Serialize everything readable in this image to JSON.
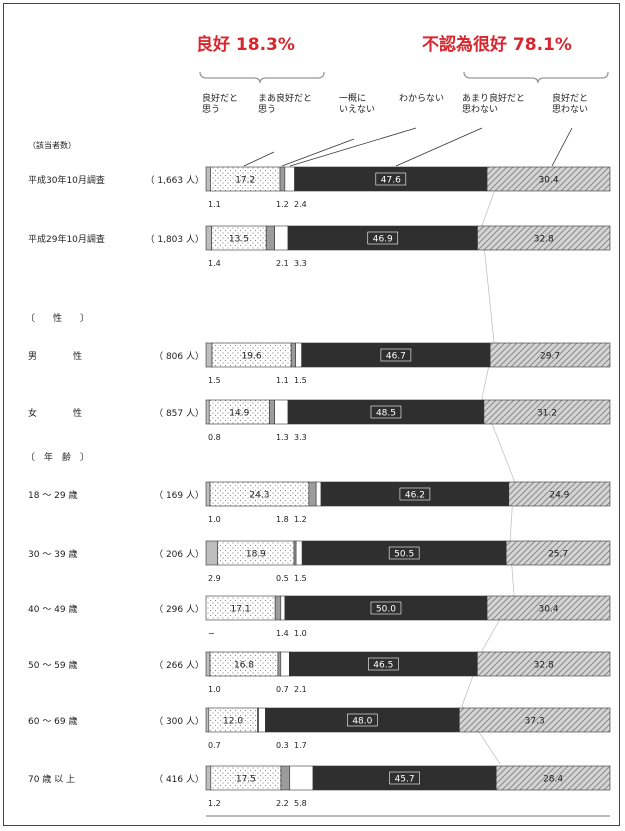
{
  "annotations": {
    "good": "良好 18.3%",
    "not_good": "不認為很好 78.1%"
  },
  "legend": [
    "良好だと\n思う",
    "まあ良好だと\n思う",
    "一概に\nいえない",
    "わからない",
    "あまり良好だと\n思わない",
    "良好だと\n思わない"
  ],
  "count_header": "（該当者数）",
  "groups": {
    "sex": "〔　　性　　〕",
    "age": "〔　年　齢　〕"
  },
  "chart_data": {
    "type": "bar",
    "orientation": "horizontal-stacked-100",
    "categories": [
      "良好だと思う",
      "まあ良好だと思う",
      "一概にいえない",
      "わからない",
      "あまり良好だと思わない",
      "良好だと思わない"
    ],
    "colors": [
      "#f4f4f4",
      "#e6e6e6",
      "#9a9a9a",
      "#ffffff",
      "#2e2e2e",
      "#c9c9c9"
    ],
    "rows": [
      {
        "label": "平成30年10月調査",
        "n": "（ 1,663 人）",
        "values": [
          1.1,
          17.2,
          1.2,
          2.4,
          47.6,
          30.4
        ],
        "shown_inside": [
          1,
          4,
          5
        ],
        "shown_below": [
          "1.1",
          "1.2",
          "2.4"
        ]
      },
      {
        "label": "平成29年10月調査",
        "n": "（ 1,803 人）",
        "values": [
          1.4,
          13.5,
          2.1,
          3.3,
          46.9,
          32.8
        ],
        "shown_inside": [
          1,
          4,
          5
        ],
        "shown_below": [
          "1.4",
          "2.1",
          "3.3"
        ]
      },
      {
        "label": "男　　　　性",
        "n": "（ 806 人）",
        "values": [
          1.5,
          19.6,
          1.1,
          1.5,
          46.7,
          29.7
        ],
        "shown_inside": [
          1,
          4,
          5
        ],
        "shown_below": [
          "1.5",
          "1.1",
          "1.5"
        ]
      },
      {
        "label": "女　　　　性",
        "n": "（ 857 人）",
        "values": [
          0.8,
          14.9,
          1.3,
          3.3,
          48.5,
          31.2
        ],
        "shown_inside": [
          1,
          4,
          5
        ],
        "shown_below": [
          "0.8",
          "1.3",
          "3.3"
        ]
      },
      {
        "label": "18 〜 29 歳",
        "n": "（ 169 人）",
        "values": [
          1.0,
          24.3,
          1.8,
          1.2,
          46.2,
          24.9
        ],
        "shown_inside": [
          1,
          4,
          5
        ],
        "shown_below": [
          "1.0",
          "1.8",
          "1.2"
        ]
      },
      {
        "label": "30 〜 39 歳",
        "n": "（ 206 人）",
        "values": [
          2.9,
          18.9,
          0.5,
          1.5,
          50.5,
          25.7
        ],
        "shown_inside": [
          1,
          4,
          5
        ],
        "shown_below": [
          "2.9",
          "0.5",
          "1.5"
        ]
      },
      {
        "label": "40 〜 49 歳",
        "n": "（ 296 人）",
        "values": [
          0,
          17.1,
          1.4,
          1.0,
          50.0,
          30.4
        ],
        "shown_inside": [
          1,
          4,
          5
        ],
        "shown_below": [
          "−",
          "1.4",
          "1.0"
        ]
      },
      {
        "label": "50 〜 59 歳",
        "n": "（ 266 人）",
        "values": [
          1.0,
          16.8,
          0.7,
          2.1,
          46.5,
          32.8
        ],
        "shown_inside": [
          1,
          4,
          5
        ],
        "shown_below": [
          "1.0",
          "0.7",
          "2.1"
        ]
      },
      {
        "label": "60 〜 69 歳",
        "n": "（ 300 人）",
        "values": [
          0.7,
          12.0,
          0.3,
          1.7,
          48.0,
          37.3
        ],
        "shown_inside": [
          1,
          4,
          5
        ],
        "shown_below": [
          "0.7",
          "0.3",
          "1.7"
        ]
      },
      {
        "label": "70 歳 以 上",
        "n": "（ 416 人）",
        "values": [
          1.2,
          17.5,
          2.2,
          5.8,
          45.7,
          28.4
        ],
        "shown_inside": [
          1,
          4,
          5
        ],
        "shown_below": [
          "1.2",
          "2.2",
          "5.8"
        ]
      }
    ],
    "value_labels": [
      [
        "17.2",
        "47.6",
        "30.4"
      ],
      [
        "13.5",
        "46.9",
        "32.8"
      ],
      [
        "19.6",
        "46.7",
        "29.7"
      ],
      [
        "14.9",
        "48.5",
        "31.2"
      ],
      [
        "24.3",
        "46.2",
        "24.9"
      ],
      [
        "18.9",
        "50.5",
        "25.7"
      ],
      [
        "17.1",
        "50.0",
        "30.4"
      ],
      [
        "16.8",
        "46.5",
        "32.8"
      ],
      [
        "12.0",
        "48.0",
        "37.3"
      ],
      [
        "17.5",
        "45.7",
        "28.4"
      ]
    ],
    "xlim": [
      0,
      100
    ]
  }
}
